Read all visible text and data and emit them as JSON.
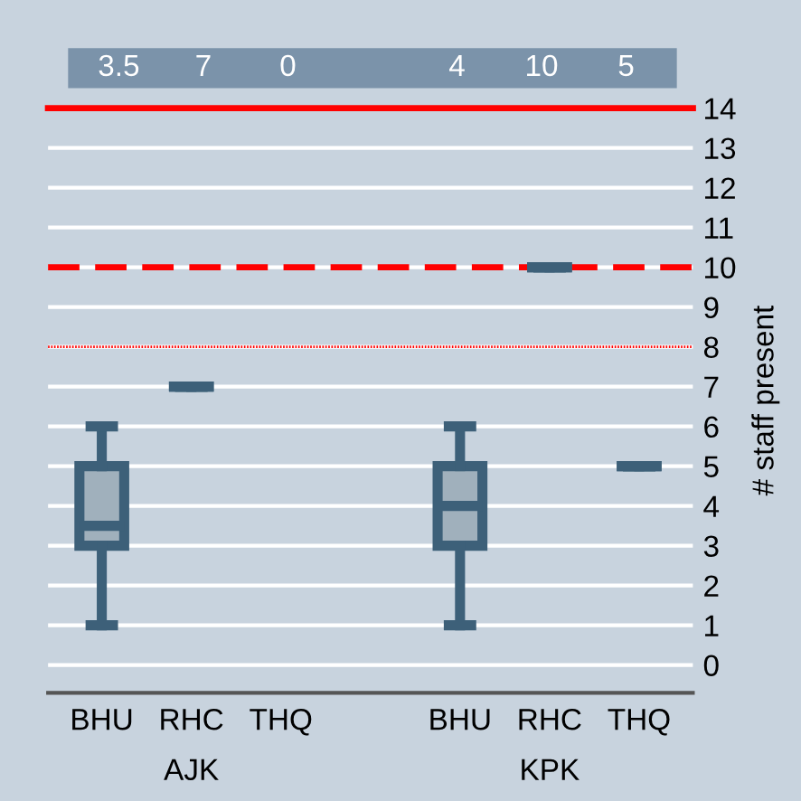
{
  "chart_data": {
    "type": "box",
    "categories": [
      "BHU",
      "RHC",
      "THQ",
      null,
      "BHU",
      "RHC",
      "THQ"
    ],
    "boxes": [
      {
        "low": 1,
        "q1": 3,
        "median": 3.5,
        "q3": 5,
        "high": 6
      },
      {
        "low": 7,
        "q1": 7,
        "median": 7,
        "q3": 7,
        "high": 7
      },
      null,
      null,
      {
        "low": 1,
        "q1": 3,
        "median": 4,
        "q3": 5,
        "high": 6
      },
      {
        "low": 10,
        "q1": 10,
        "median": 10,
        "q3": 10,
        "high": 10
      },
      {
        "low": 5,
        "q1": 5,
        "median": 5,
        "q3": 5,
        "high": 5
      }
    ],
    "value_labels": [
      "3.5",
      "7",
      "0",
      null,
      "4",
      "10",
      "5"
    ],
    "color": "#3d6079",
    "ylabel": "# staff present",
    "ylim": [
      -0.7,
      14
    ],
    "yticks": [
      0,
      1,
      2,
      3,
      4,
      5,
      6,
      7,
      8,
      9,
      10,
      11,
      12,
      13,
      14
    ],
    "grid": "y",
    "ref_lines": [
      {
        "axis": "y",
        "value": 14,
        "color": "#ff0000",
        "line_style": "solid"
      },
      {
        "axis": "y",
        "value": 10,
        "color": "#ff0000",
        "line_style": "dashed"
      },
      {
        "axis": "y",
        "value": 8,
        "color": "#ff0000",
        "line_style": "dotted"
      }
    ],
    "annotations": [
      "AJK",
      "KPK"
    ]
  }
}
